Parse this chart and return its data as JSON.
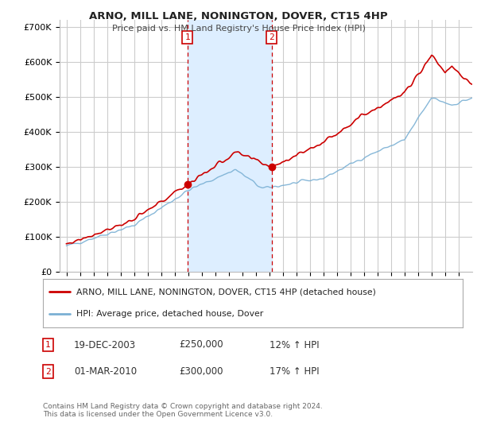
{
  "title": "ARNO, MILL LANE, NONINGTON, DOVER, CT15 4HP",
  "subtitle": "Price paid vs. HM Land Registry's House Price Index (HPI)",
  "footer": "Contains HM Land Registry data © Crown copyright and database right 2024.\nThis data is licensed under the Open Government Licence v3.0.",
  "legend_line1": "ARNO, MILL LANE, NONINGTON, DOVER, CT15 4HP (detached house)",
  "legend_line2": "HPI: Average price, detached house, Dover",
  "transaction1_date": "19-DEC-2003",
  "transaction1_price": "£250,000",
  "transaction1_hpi": "12% ↑ HPI",
  "transaction1_value": 250000,
  "transaction1_x": 2003.96,
  "transaction2_date": "01-MAR-2010",
  "transaction2_price": "£300,000",
  "transaction2_hpi": "17% ↑ HPI",
  "transaction2_value": 300000,
  "transaction2_x": 2010.17,
  "property_color": "#cc0000",
  "hpi_color": "#7ab0d4",
  "dot_color": "#cc0000",
  "vline_color": "#cc0000",
  "shading_color": "#ddeeff",
  "ylim": [
    0,
    720000
  ],
  "xlim": [
    1994.5,
    2025.0
  ],
  "yticks": [
    0,
    100000,
    200000,
    300000,
    400000,
    500000,
    600000,
    700000
  ],
  "ytick_labels": [
    "£0",
    "£100K",
    "£200K",
    "£300K",
    "£400K",
    "£500K",
    "£600K",
    "£700K"
  ],
  "xticks": [
    1995,
    1996,
    1997,
    1998,
    1999,
    2000,
    2001,
    2002,
    2003,
    2004,
    2005,
    2006,
    2007,
    2008,
    2009,
    2010,
    2011,
    2012,
    2013,
    2014,
    2015,
    2016,
    2017,
    2018,
    2019,
    2020,
    2021,
    2022,
    2023,
    2024
  ],
  "background_color": "#ffffff",
  "plot_bg_color": "#ffffff",
  "grid_color": "#cccccc"
}
